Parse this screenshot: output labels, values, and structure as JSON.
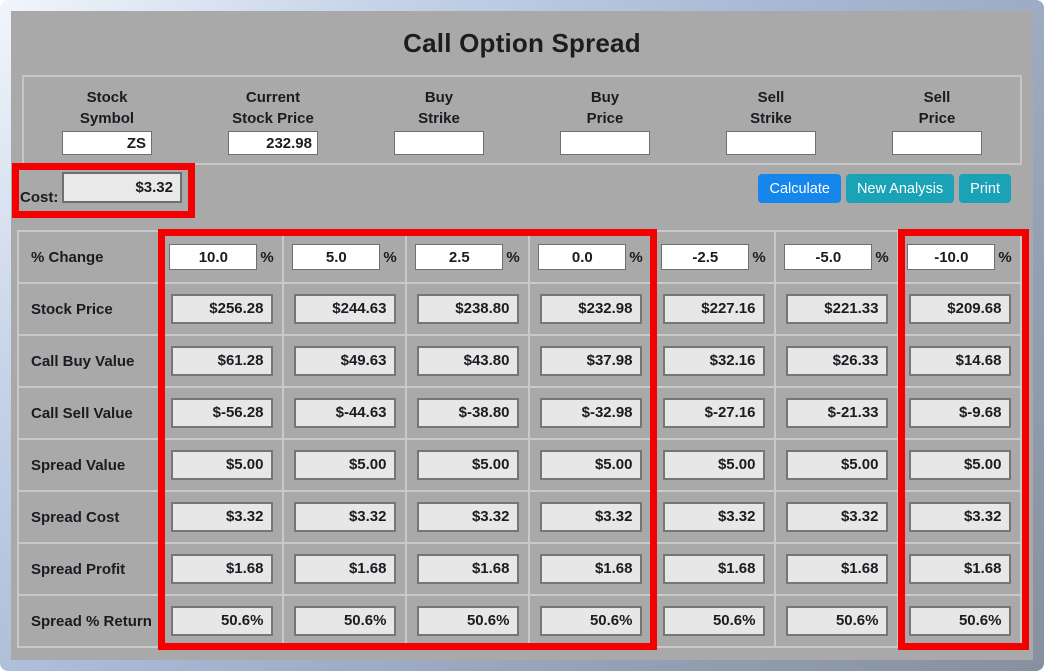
{
  "title": "Call Option Spread",
  "header_fields": [
    {
      "label_line1": "Stock",
      "label_line2": "Symbol",
      "value": "ZS"
    },
    {
      "label_line1": "Current",
      "label_line2": "Stock Price",
      "value": "232.98"
    },
    {
      "label_line1": "Buy",
      "label_line2": "Strike",
      "value": ""
    },
    {
      "label_line1": "Buy",
      "label_line2": "Price",
      "value": ""
    },
    {
      "label_line1": "Sell",
      "label_line2": "Strike",
      "value": ""
    },
    {
      "label_line1": "Sell",
      "label_line2": "Price",
      "value": ""
    }
  ],
  "cost": {
    "label": "Cost:",
    "value": "$3.32"
  },
  "buttons": [
    {
      "label": "Calculate",
      "color": "#1486ec"
    },
    {
      "label": "New Analysis",
      "color": "#1aa2b6"
    },
    {
      "label": "Print",
      "color": "#1aa2b6"
    }
  ],
  "table": {
    "percent_suffix": "%",
    "rows": [
      {
        "label": "% Change",
        "type": "percent-input",
        "values": [
          "10.0",
          "5.0",
          "2.5",
          "0.0",
          "-2.5",
          "-5.0",
          "-10.0"
        ]
      },
      {
        "label": "Stock Price",
        "type": "output",
        "values": [
          "$256.28",
          "$244.63",
          "$238.80",
          "$232.98",
          "$227.16",
          "$221.33",
          "$209.68"
        ]
      },
      {
        "label": "Call Buy Value",
        "type": "output",
        "values": [
          "$61.28",
          "$49.63",
          "$43.80",
          "$37.98",
          "$32.16",
          "$26.33",
          "$14.68"
        ]
      },
      {
        "label": "Call Sell Value",
        "type": "output",
        "values": [
          "$-56.28",
          "$-44.63",
          "$-38.80",
          "$-32.98",
          "$-27.16",
          "$-21.33",
          "$-9.68"
        ]
      },
      {
        "label": "Spread Value",
        "type": "output",
        "values": [
          "$5.00",
          "$5.00",
          "$5.00",
          "$5.00",
          "$5.00",
          "$5.00",
          "$5.00"
        ]
      },
      {
        "label": "Spread Cost",
        "type": "output",
        "values": [
          "$3.32",
          "$3.32",
          "$3.32",
          "$3.32",
          "$3.32",
          "$3.32",
          "$3.32"
        ]
      },
      {
        "label": "Spread Profit",
        "type": "output",
        "values": [
          "$1.68",
          "$1.68",
          "$1.68",
          "$1.68",
          "$1.68",
          "$1.68",
          "$1.68"
        ]
      },
      {
        "label": "Spread % Return",
        "type": "output",
        "values": [
          "50.6%",
          "50.6%",
          "50.6%",
          "50.6%",
          "50.6%",
          "50.6%",
          "50.6%"
        ]
      }
    ]
  },
  "annotations": {
    "color": "#f40000",
    "boxes": [
      {
        "name": "cost-field-highlight",
        "highlights": "Cost: $3.32 field"
      },
      {
        "name": "columns-1-to-4-highlight",
        "highlights": "% change columns 10.0 through 0.0"
      },
      {
        "name": "column-minus10-highlight",
        "highlights": "% change column -10.0"
      }
    ]
  },
  "colors": {
    "page_background": "#a9a9a9",
    "calculate_button": "#1486ec",
    "secondary_buttons": "#1aa2b6",
    "annotation_red": "#f40000"
  }
}
